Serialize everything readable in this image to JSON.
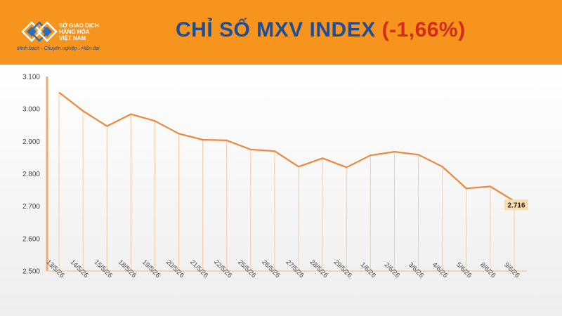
{
  "header": {
    "org_lines": [
      "SỞ GIAO DỊCH",
      "HÀNG HÓA",
      "VIỆT NAM"
    ],
    "tagline": "Minh bạch - Chuyên nghiệp - Hiện đại",
    "title": "CHỈ SỐ MXV INDEX",
    "change": "(-1,66%)",
    "background_color": "#f7941d",
    "title_color": "#1f4e96",
    "change_color": "#d62a1f"
  },
  "chart_data": {
    "type": "line",
    "title": "",
    "xlabel": "",
    "ylabel": "",
    "categories": [
      "13/5/26",
      "14/5/26",
      "15/5/26",
      "18/5/26",
      "19/5/26",
      "20/5/26",
      "21/5/26",
      "22/5/26",
      "25/5/26",
      "26/5/26",
      "27/5/26",
      "28/5/26",
      "29/5/26",
      "1/6/26",
      "2/6/26",
      "3/6/26",
      "4/6/26",
      "5/6/26",
      "8/6/26",
      "9/6/26"
    ],
    "values": [
      3051,
      2994,
      2947,
      2984,
      2963,
      2924,
      2905,
      2903,
      2875,
      2870,
      2822,
      2848,
      2820,
      2857,
      2868,
      2859,
      2822,
      2755,
      2761,
      2716
    ],
    "ylim": [
      2500,
      3100
    ],
    "yticks": [
      2500,
      2600,
      2700,
      2800,
      2900,
      3000,
      3100
    ],
    "ytick_labels": [
      "2.500",
      "2.600",
      "2.700",
      "2.800",
      "2.900",
      "3.000",
      "3.100"
    ],
    "last_value_label": "2.716",
    "grid": false,
    "drop_lines": true,
    "line_color": "#f0883a",
    "drop_line_color": "#f6c9a3",
    "label_box_color": "#f8ddb0"
  }
}
